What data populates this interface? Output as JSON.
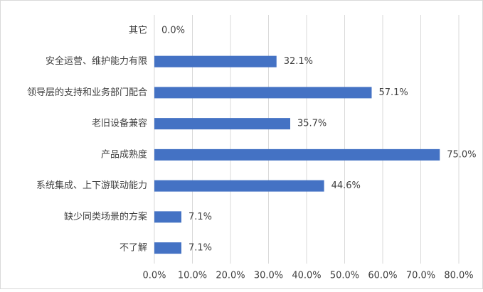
{
  "chart_data": {
    "type": "hbar",
    "categories": [
      "其它",
      "安全运营、维护能力有限",
      "领导层的支持和业务部门配合",
      "老旧设备兼容",
      "产品成熟度",
      "系统集成、上下游联动能力",
      "缺少同类场景的方案",
      "不了解"
    ],
    "values": [
      0.0,
      32.1,
      57.1,
      35.7,
      75.0,
      44.6,
      7.1,
      7.1
    ],
    "value_labels": [
      "0.0%",
      "32.1%",
      "57.1%",
      "35.7%",
      "75.0%",
      "44.6%",
      "7.1%",
      "7.1%"
    ],
    "color": "#4472c4",
    "xlim": [
      0,
      80
    ],
    "xticks": [
      {
        "value": 0,
        "label": "0.0%"
      },
      {
        "value": 10,
        "label": "10.0%"
      },
      {
        "value": 20,
        "label": "20.0%"
      },
      {
        "value": 30,
        "label": "30.0%"
      },
      {
        "value": 40,
        "label": "40.0%"
      },
      {
        "value": 50,
        "label": "50.0%"
      },
      {
        "value": 60,
        "label": "60.0%"
      },
      {
        "value": 70,
        "label": "70.0%"
      },
      {
        "value": 80,
        "label": "80.0%"
      }
    ],
    "grid": true
  }
}
